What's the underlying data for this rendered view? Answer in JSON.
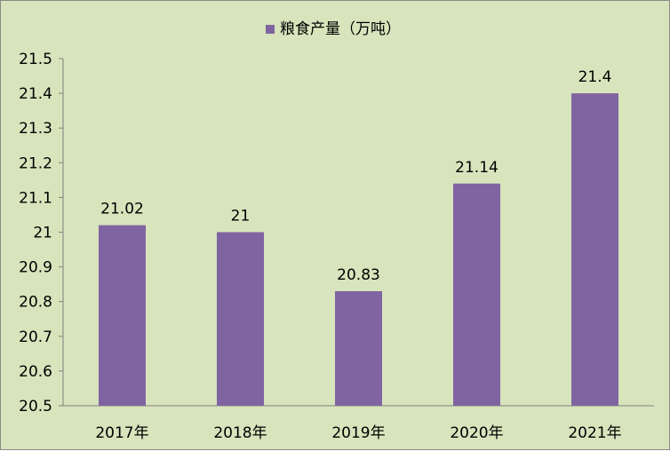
{
  "chart_data": {
    "type": "bar",
    "categories": [
      "2017年",
      "2018年",
      "2019年",
      "2020年",
      "2021年"
    ],
    "series": [
      {
        "name": "粮食产量（万吨）",
        "values": [
          21.02,
          21,
          20.83,
          21.14,
          21.4
        ],
        "color": "#8064a2"
      }
    ],
    "data_labels": [
      "21.02",
      "21",
      "20.83",
      "21.14",
      "21.4"
    ],
    "y_ticks": [
      "20.5",
      "20.6",
      "20.7",
      "20.8",
      "20.9",
      "21",
      "21.1",
      "21.2",
      "21.3",
      "21.4",
      "21.5"
    ],
    "ylim": [
      20.5,
      21.5
    ],
    "grid": false,
    "legend_position": "top"
  }
}
